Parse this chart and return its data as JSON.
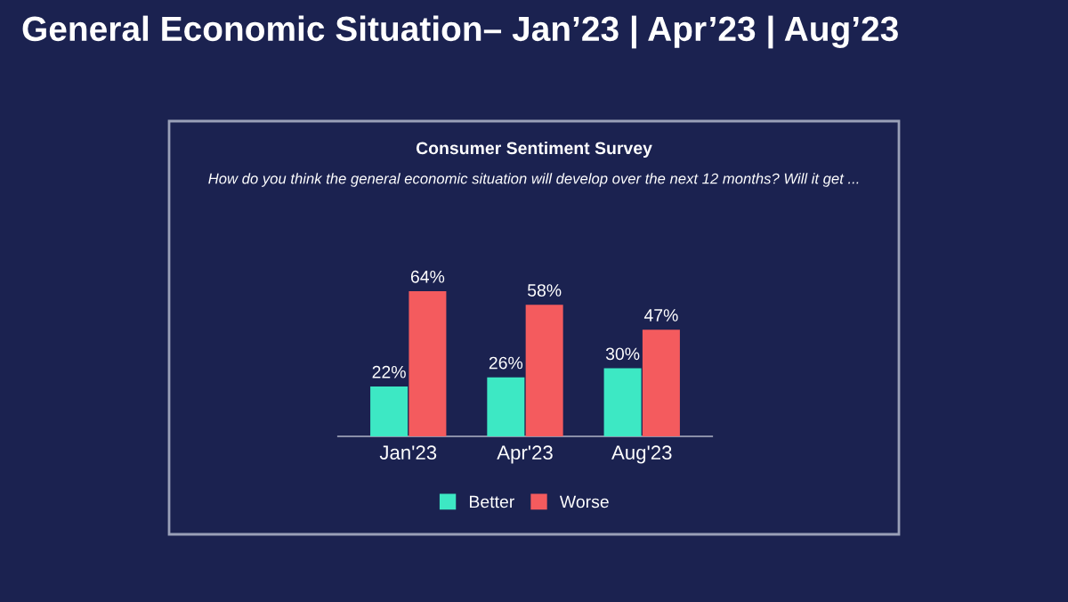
{
  "chart_data": {
    "type": "bar",
    "title": "General Economic Situation– Jan’23 | Apr’23 | Aug’23",
    "subtitle": "Consumer Sentiment Survey",
    "annotations": [
      "How do you think the general economic situation will develop over the next 12 months? Will it get ..."
    ],
    "categories": [
      "Jan'23",
      "Apr'23",
      "Aug'23"
    ],
    "series": [
      {
        "name": "Better",
        "color": "#3de8c4",
        "values": [
          22,
          26,
          30
        ],
        "value_labels": [
          "22%",
          "26%",
          "30%"
        ]
      },
      {
        "name": "Worse",
        "color": "#f45b5e",
        "values": [
          64,
          58,
          47
        ],
        "value_labels": [
          "64%",
          "58%",
          "47%"
        ]
      }
    ],
    "tick_labels": "x",
    "legend": "bottom"
  }
}
